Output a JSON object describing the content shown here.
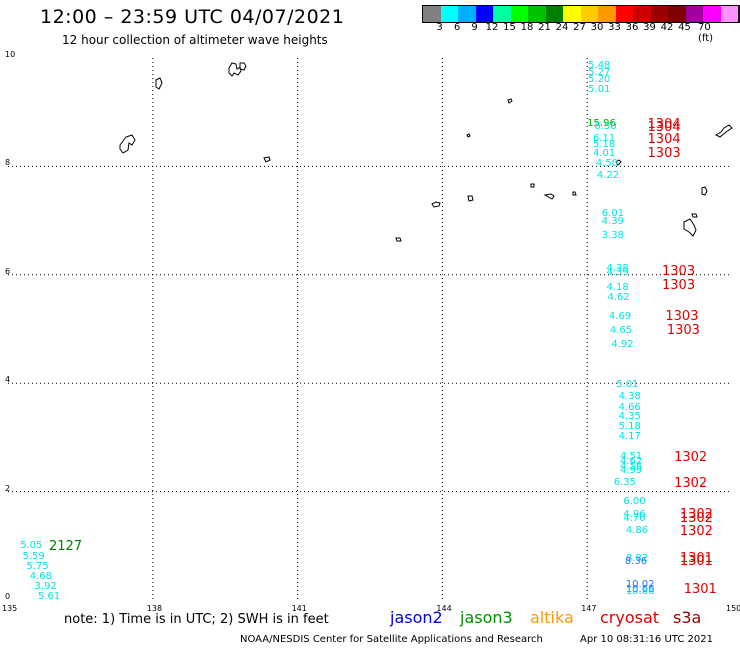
{
  "header": {
    "title": "12:00 – 23:59 UTC 04/07/2021",
    "subtitle": "12 hour collection of altimeter wave heights"
  },
  "colorbar": {
    "colors": [
      "#808080",
      "#00ffff",
      "#00b0ff",
      "#0000ff",
      "#00ffa0",
      "#00ff00",
      "#00c000",
      "#008000",
      "#ffff00",
      "#ffcc00",
      "#ff9900",
      "#ff0000",
      "#cc0000",
      "#990000",
      "#800000",
      "#a000a0",
      "#ff00ff",
      "#ff90ff",
      "#000000"
    ],
    "labels": [
      "3",
      "6",
      "9",
      "12",
      "15",
      "18",
      "21",
      "24",
      "27",
      "30",
      "33",
      "36",
      "39",
      "42",
      "45",
      "70 (ft)"
    ]
  },
  "axes": {
    "x_ticks": [
      "135",
      "138",
      "141",
      "144",
      "147",
      "150"
    ],
    "y_ticks": [
      "0",
      "2",
      "4",
      "6",
      "8",
      "10"
    ]
  },
  "map_data": {
    "lon_range": [
      135,
      150
    ],
    "lat_range": [
      0,
      10
    ],
    "observations": [
      {
        "text": "5.48",
        "lon": 147.02,
        "lat": 9.85,
        "color": "#00e5e5"
      },
      {
        "text": "5.27",
        "lon": 147.02,
        "lat": 9.72,
        "color": "#00e5e5"
      },
      {
        "text": "5.20",
        "lon": 147.02,
        "lat": 9.6,
        "color": "#00e5e5"
      },
      {
        "text": "5.01",
        "lon": 147.02,
        "lat": 9.41,
        "color": "#00e5e5"
      },
      {
        "text": "15.96",
        "lon": 147.0,
        "lat": 8.78,
        "color": "#00aa00"
      },
      {
        "text": "6.50",
        "lon": 147.15,
        "lat": 8.72,
        "color": "#00e5e5"
      },
      {
        "text": "6.11",
        "lon": 147.12,
        "lat": 8.5,
        "color": "#00e5e5"
      },
      {
        "text": "5.18",
        "lon": 147.12,
        "lat": 8.4,
        "color": "#00e5e5"
      },
      {
        "text": "4.01",
        "lon": 147.12,
        "lat": 8.22,
        "color": "#00e5e5"
      },
      {
        "text": "4.50",
        "lon": 147.18,
        "lat": 8.05,
        "color": "#00e5e5"
      },
      {
        "text": "4.22",
        "lon": 147.2,
        "lat": 7.83,
        "color": "#00e5e5"
      },
      {
        "text": "6.01",
        "lon": 147.3,
        "lat": 7.13,
        "color": "#00e5e5"
      },
      {
        "text": "4.39",
        "lon": 147.3,
        "lat": 6.97,
        "color": "#00e5e5"
      },
      {
        "text": "3.38",
        "lon": 147.3,
        "lat": 6.72,
        "color": "#00e5e5"
      },
      {
        "text": "4.38",
        "lon": 147.4,
        "lat": 6.1,
        "color": "#00e5e5"
      },
      {
        "text": "4.39",
        "lon": 147.4,
        "lat": 6.04,
        "color": "#00e5e5"
      },
      {
        "text": "4.18",
        "lon": 147.4,
        "lat": 5.76,
        "color": "#00e5e5"
      },
      {
        "text": "4.62",
        "lon": 147.42,
        "lat": 5.58,
        "color": "#00e5e5"
      },
      {
        "text": "4.69",
        "lon": 147.45,
        "lat": 5.22,
        "color": "#00e5e5"
      },
      {
        "text": "4.65",
        "lon": 147.47,
        "lat": 4.97,
        "color": "#00e5e5"
      },
      {
        "text": "4.92",
        "lon": 147.5,
        "lat": 4.71,
        "color": "#00e5e5"
      },
      {
        "text": "5.01",
        "lon": 147.6,
        "lat": 3.97,
        "color": "#00e5e5"
      },
      {
        "text": "4.38",
        "lon": 147.65,
        "lat": 3.74,
        "color": "#00e5e5"
      },
      {
        "text": "4.66",
        "lon": 147.65,
        "lat": 3.55,
        "color": "#00e5e5"
      },
      {
        "text": "4.35",
        "lon": 147.65,
        "lat": 3.37,
        "color": "#00e5e5"
      },
      {
        "text": "5.18",
        "lon": 147.65,
        "lat": 3.19,
        "color": "#00e5e5"
      },
      {
        "text": "4.17",
        "lon": 147.65,
        "lat": 3.0,
        "color": "#00e5e5"
      },
      {
        "text": "4.51",
        "lon": 147.68,
        "lat": 2.64,
        "color": "#00e5e5"
      },
      {
        "text": "4.62",
        "lon": 147.68,
        "lat": 2.55,
        "color": "#00e5e5"
      },
      {
        "text": "4.56",
        "lon": 147.68,
        "lat": 2.45,
        "color": "#00e5e5"
      },
      {
        "text": "4.99",
        "lon": 147.68,
        "lat": 2.38,
        "color": "#00e5e5"
      },
      {
        "text": "6.35",
        "lon": 147.55,
        "lat": 2.16,
        "color": "#00e5e5"
      },
      {
        "text": "6.00",
        "lon": 147.75,
        "lat": 1.8,
        "color": "#00e5e5"
      },
      {
        "text": "4.96",
        "lon": 147.75,
        "lat": 1.56,
        "color": "#00e5e5"
      },
      {
        "text": "4.70",
        "lon": 147.75,
        "lat": 1.49,
        "color": "#00e5e5"
      },
      {
        "text": "4.86",
        "lon": 147.8,
        "lat": 1.28,
        "color": "#00e5e5"
      },
      {
        "text": "8.82",
        "lon": 147.8,
        "lat": 0.76,
        "color": "#00e5e5"
      },
      {
        "text": "8.36",
        "lon": 147.78,
        "lat": 0.7,
        "color": "#2a6dff"
      },
      {
        "text": "10.02",
        "lon": 147.8,
        "lat": 0.28,
        "color": "#2a6dff"
      },
      {
        "text": "10.66",
        "lon": 147.8,
        "lat": 0.18,
        "color": "#2a6dff"
      },
      {
        "text": "10.86",
        "lon": 147.8,
        "lat": 0.14,
        "color": "#00e5e5"
      },
      {
        "text": "5.05",
        "lon": 135.25,
        "lat": 0.99,
        "color": "#00e5e5"
      },
      {
        "text": "5.59",
        "lon": 135.3,
        "lat": 0.8,
        "color": "#00e5e5"
      },
      {
        "text": "5.75",
        "lon": 135.38,
        "lat": 0.6,
        "color": "#00e5e5"
      },
      {
        "text": "4.68",
        "lon": 135.45,
        "lat": 0.42,
        "color": "#00e5e5"
      },
      {
        "text": "3.92",
        "lon": 135.55,
        "lat": 0.24,
        "color": "#00e5e5"
      },
      {
        "text": "5.61",
        "lon": 135.62,
        "lat": 0.06,
        "color": "#00e5e5"
      }
    ],
    "passes": [
      {
        "text": "1304",
        "lon": 148.25,
        "lat": 8.78,
        "color": "#e00000"
      },
      {
        "text": "1304",
        "lon": 148.25,
        "lat": 8.72,
        "color": "#e00000"
      },
      {
        "text": "1304",
        "lon": 148.25,
        "lat": 8.5,
        "color": "#e00000"
      },
      {
        "text": "1303",
        "lon": 148.25,
        "lat": 8.24,
        "color": "#e00000"
      },
      {
        "text": "1303",
        "lon": 148.55,
        "lat": 6.07,
        "color": "#e00000"
      },
      {
        "text": "1303",
        "lon": 148.55,
        "lat": 5.81,
        "color": "#e00000"
      },
      {
        "text": "1303",
        "lon": 148.62,
        "lat": 5.24,
        "color": "#e00000"
      },
      {
        "text": "1303",
        "lon": 148.65,
        "lat": 4.99,
        "color": "#e00000"
      },
      {
        "text": "1302",
        "lon": 148.8,
        "lat": 2.63,
        "color": "#e00000"
      },
      {
        "text": "1302",
        "lon": 148.8,
        "lat": 2.16,
        "color": "#e00000"
      },
      {
        "text": "1302",
        "lon": 148.92,
        "lat": 1.58,
        "color": "#e00000"
      },
      {
        "text": "1302",
        "lon": 148.92,
        "lat": 1.51,
        "color": "#e00000"
      },
      {
        "text": "1302",
        "lon": 148.92,
        "lat": 1.28,
        "color": "#e00000"
      },
      {
        "text": "1301",
        "lon": 148.92,
        "lat": 0.78,
        "color": "#e00000"
      },
      {
        "text": "1301",
        "lon": 148.92,
        "lat": 0.72,
        "color": "#e00000"
      },
      {
        "text": "1301",
        "lon": 149.0,
        "lat": 0.2,
        "color": "#e00000"
      },
      {
        "text": "2127",
        "lon": 135.85,
        "lat": 0.99,
        "color": "#008000"
      }
    ]
  },
  "note": "note: 1) Time is in UTC; 2) SWH is in feet",
  "legend": [
    {
      "label": "jason2",
      "color": "#0000ee"
    },
    {
      "label": "jason3",
      "color": "#009000"
    },
    {
      "label": "altika",
      "color": "#ff9900"
    },
    {
      "label": "cryosat",
      "color": "#e00000"
    },
    {
      "label": "s3a",
      "color": "#990000"
    }
  ],
  "footer": {
    "credit": "NOAA/NESDIS Center for Satellite Applications and Research",
    "timestamp": "Apr 10 08:31:16 UTC 2021"
  }
}
